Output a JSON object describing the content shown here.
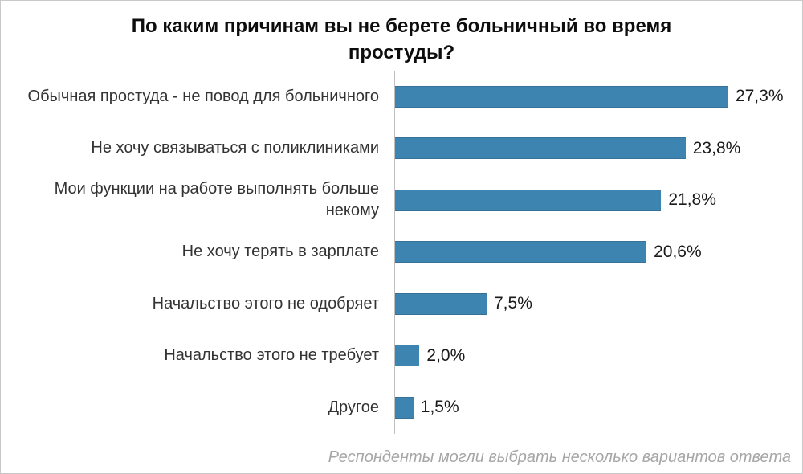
{
  "chart_data": {
    "type": "bar",
    "orientation": "horizontal",
    "title": "По каким причинам вы не берете больничный во время простуды?",
    "title_lines": [
      "По каким причинам вы не берете больничный во время",
      "простуды?"
    ],
    "categories": [
      "Обычная простуда - не повод для больничного",
      "Не хочу связываться с поликлиниками",
      "Мои функции на работе выполнять больше некому",
      "Не хочу терять в зарплате",
      "Начальство этого не одобряет",
      "Начальство этого не требует",
      "Другое"
    ],
    "values": [
      27.3,
      23.8,
      21.8,
      20.6,
      7.5,
      2.0,
      1.5
    ],
    "value_labels": [
      "27,3%",
      "23,8%",
      "21,8%",
      "20,6%",
      "7,5%",
      "2,0%",
      "1,5%"
    ],
    "xlim": [
      0,
      30
    ],
    "grid": false,
    "legend": "none",
    "bar_color": "#3e84b1",
    "axis_color": "#bfbfbf",
    "footnote": "Респонденты могли выбрать несколько вариантов ответа"
  }
}
